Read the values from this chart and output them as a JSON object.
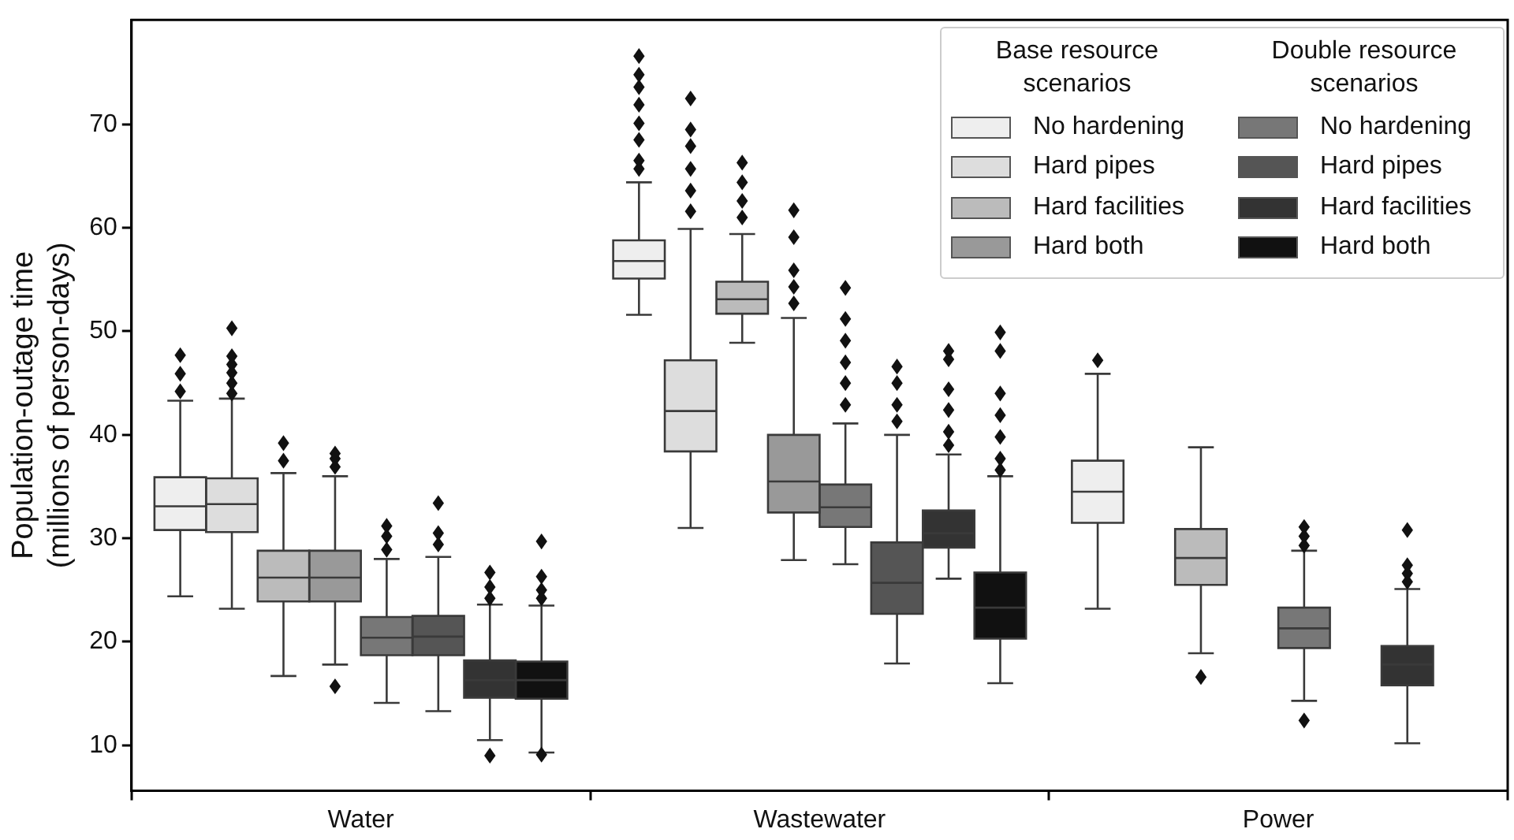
{
  "chart_data": {
    "type": "box",
    "ylabel": "Population-outage time\n(millions of person-days)",
    "categories": [
      "Water",
      "Wastewater",
      "Power"
    ],
    "ylim": [
      5.6,
      80.1
    ],
    "yticks": [
      10,
      20,
      30,
      40,
      50,
      60,
      70
    ],
    "legend": "top right",
    "legend_title": [
      "Base resource scenarios",
      "Double resource scenarios"
    ],
    "marker": "diamond",
    "series": [
      {
        "name": "No hardening",
        "color": "#eeeeee",
        "boxes": [
          {
            "low": 24.4,
            "q1": 30.8,
            "median": 33.1,
            "q3": 35.9,
            "high": 43.3,
            "outliers": [
              44.2,
              45.9,
              47.7
            ]
          },
          {
            "low": 51.6,
            "q1": 55.1,
            "median": 56.8,
            "q3": 58.8,
            "high": 64.4,
            "outliers": [
              65.7,
              66.5,
              68.5,
              70.1,
              71.9,
              73.6,
              74.8,
              76.6
            ]
          },
          {
            "low": 23.2,
            "q1": 31.5,
            "median": 34.5,
            "q3": 37.5,
            "high": 45.9,
            "outliers": [
              47.2
            ]
          }
        ]
      },
      {
        "name": "Hard pipes",
        "color": "#dddddd",
        "boxes": [
          {
            "low": 23.2,
            "q1": 30.6,
            "median": 33.3,
            "q3": 35.8,
            "high": 43.5,
            "outliers": [
              44.0,
              45.0,
              46.0,
              46.8,
              47.6,
              50.3
            ]
          },
          {
            "low": 31.0,
            "q1": 38.4,
            "median": 42.3,
            "q3": 47.2,
            "high": 59.9,
            "outliers": [
              61.6,
              63.6,
              65.7,
              67.9,
              69.5,
              72.5
            ]
          },
          null
        ]
      },
      {
        "name": "Hard facilities",
        "color": "#bbbbbb",
        "boxes": [
          {
            "low": 16.7,
            "q1": 23.9,
            "median": 26.2,
            "q3": 28.8,
            "high": 36.3,
            "outliers": [
              37.5,
              39.2
            ]
          },
          {
            "low": 48.9,
            "q1": 51.7,
            "median": 53.1,
            "q3": 54.8,
            "high": 59.4,
            "outliers": [
              61.0,
              62.6,
              64.4,
              66.3
            ]
          },
          {
            "low": 18.9,
            "q1": 25.5,
            "median": 28.1,
            "q3": 30.9,
            "high": 38.8,
            "outliers": [
              16.6
            ]
          }
        ]
      },
      {
        "name": "Hard both",
        "color": "#999999",
        "boxes": [
          {
            "low": 17.8,
            "q1": 23.9,
            "median": 26.2,
            "q3": 28.8,
            "high": 36.0,
            "outliers": [
              15.7,
              36.9,
              37.7,
              38.2
            ]
          },
          {
            "low": 27.9,
            "q1": 32.5,
            "median": 35.5,
            "q3": 40.0,
            "high": 51.3,
            "outliers": [
              52.7,
              54.3,
              55.9,
              59.1,
              61.7
            ]
          },
          null
        ]
      },
      {
        "name": "No hardening",
        "color": "#777777",
        "boxes": [
          {
            "low": 14.1,
            "q1": 18.7,
            "median": 20.4,
            "q3": 22.4,
            "high": 28.0,
            "outliers": [
              28.9,
              30.2,
              31.2
            ]
          },
          {
            "low": 27.5,
            "q1": 31.1,
            "median": 33.0,
            "q3": 35.2,
            "high": 41.1,
            "outliers": [
              42.9,
              45.0,
              47.0,
              49.1,
              51.2,
              54.2
            ]
          },
          {
            "low": 14.3,
            "q1": 19.4,
            "median": 21.3,
            "q3": 23.3,
            "high": 28.8,
            "outliers": [
              12.4,
              29.3,
              30.2,
              31.1
            ]
          }
        ]
      },
      {
        "name": "Hard pipes",
        "color": "#555555",
        "boxes": [
          {
            "low": 13.3,
            "q1": 18.7,
            "median": 20.5,
            "q3": 22.5,
            "high": 28.2,
            "outliers": [
              29.4,
              30.5,
              33.4
            ]
          },
          {
            "low": 17.9,
            "q1": 22.7,
            "median": 25.7,
            "q3": 29.6,
            "high": 40.0,
            "outliers": [
              41.3,
              42.9,
              45.0,
              46.6
            ]
          },
          null
        ]
      },
      {
        "name": "Hard facilities",
        "color": "#333333",
        "boxes": [
          {
            "low": 10.5,
            "q1": 14.6,
            "median": 16.3,
            "q3": 18.2,
            "high": 23.6,
            "outliers": [
              9.0,
              24.2,
              25.3,
              26.7
            ]
          },
          {
            "low": 26.1,
            "q1": 29.1,
            "median": 30.5,
            "q3": 32.7,
            "high": 38.1,
            "outliers": [
              39.0,
              40.3,
              42.4,
              44.4,
              47.3,
              48.1
            ]
          },
          {
            "low": 10.2,
            "q1": 15.8,
            "median": 17.8,
            "q3": 19.6,
            "high": 25.1,
            "outliers": [
              25.8,
              26.6,
              27.4,
              30.8
            ]
          }
        ]
      },
      {
        "name": "Hard both",
        "color": "#111111",
        "boxes": [
          {
            "low": 9.3,
            "q1": 14.5,
            "median": 16.3,
            "q3": 18.1,
            "high": 23.5,
            "outliers": [
              9.1,
              24.2,
              25.0,
              26.3,
              29.7
            ]
          },
          {
            "low": 16.0,
            "q1": 20.3,
            "median": 23.3,
            "q3": 26.7,
            "high": 36.0,
            "outliers": [
              36.6,
              37.7,
              39.8,
              41.9,
              44.0,
              48.1,
              49.9
            ]
          },
          null
        ]
      }
    ]
  }
}
